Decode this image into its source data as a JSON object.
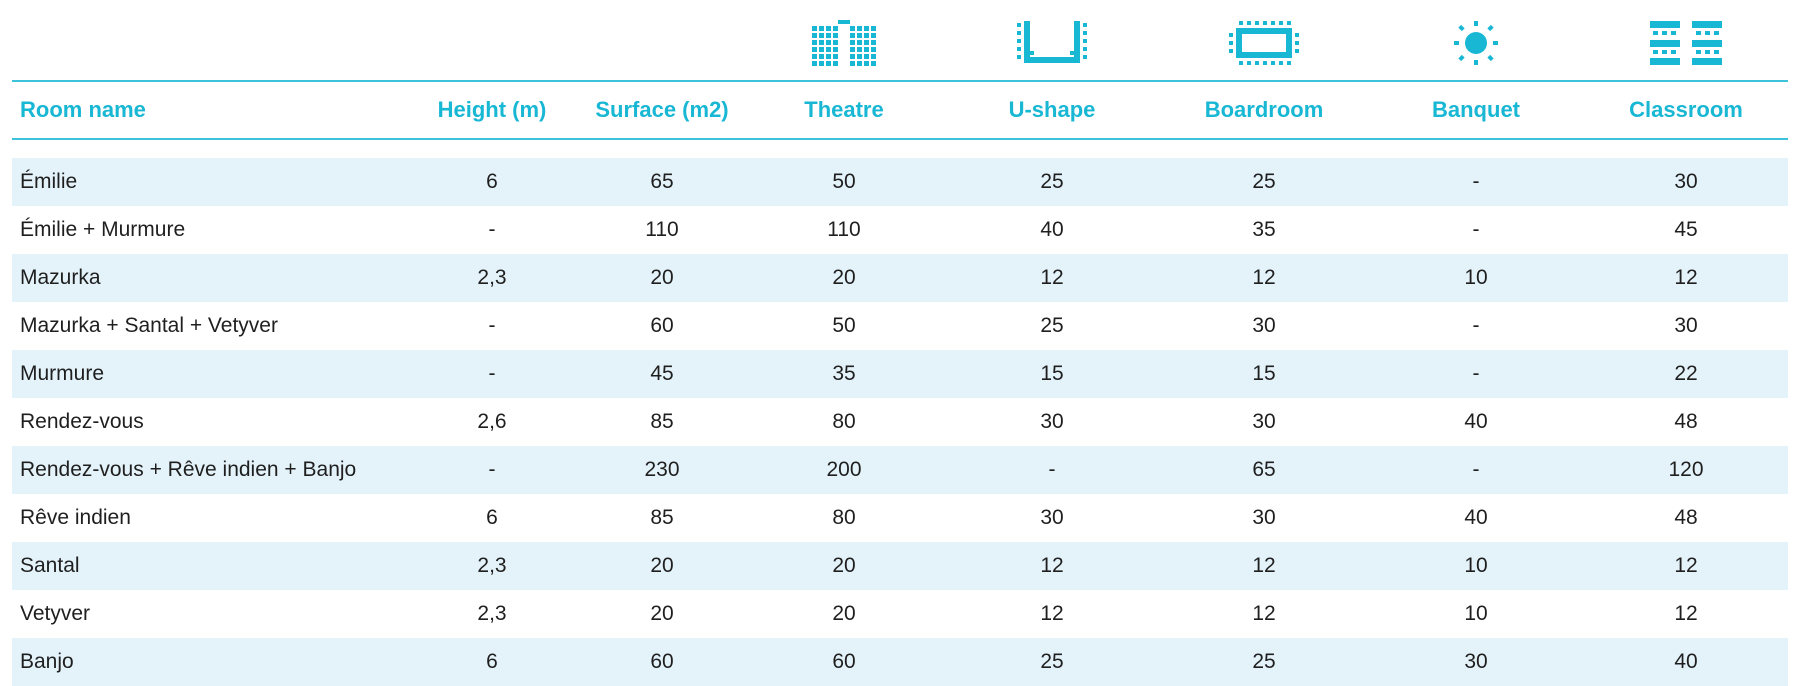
{
  "colors": {
    "accent": "#18b7d4",
    "rule": "#3cc3d9",
    "row_alt_bg": "#e4f3fa",
    "text": "#1f1f1f"
  },
  "icons": [
    "theatre-layout-icon",
    "u-shape-layout-icon",
    "boardroom-layout-icon",
    "banquet-layout-icon",
    "classroom-layout-icon"
  ],
  "table": {
    "headers": [
      "Room name",
      "Height (m)",
      "Surface (m2)",
      "Theatre",
      "U-shape",
      "Boardroom",
      "Banquet",
      "Classroom"
    ],
    "rows": [
      [
        "Émilie",
        "6",
        "65",
        "50",
        "25",
        "25",
        "-",
        "30"
      ],
      [
        "Émilie + Murmure",
        "-",
        "110",
        "110",
        "40",
        "35",
        "-",
        "45"
      ],
      [
        "Mazurka",
        "2,3",
        "20",
        "20",
        "12",
        "12",
        "10",
        "12"
      ],
      [
        "Mazurka + Santal + Vetyver",
        "-",
        "60",
        "50",
        "25",
        "30",
        "-",
        "30"
      ],
      [
        "Murmure",
        "-",
        "45",
        "35",
        "15",
        "15",
        "-",
        "22"
      ],
      [
        "Rendez-vous",
        "2,6",
        "85",
        "80",
        "30",
        "30",
        "40",
        "48"
      ],
      [
        "Rendez-vous + Rêve indien + Banjo",
        "-",
        "230",
        "200",
        "-",
        "65",
        "-",
        "120"
      ],
      [
        "Rêve indien",
        "6",
        "85",
        "80",
        "30",
        "30",
        "40",
        "48"
      ],
      [
        "Santal",
        "2,3",
        "20",
        "20",
        "12",
        "12",
        "10",
        "12"
      ],
      [
        "Vetyver",
        "2,3",
        "20",
        "20",
        "12",
        "12",
        "10",
        "12"
      ],
      [
        "Banjo",
        "6",
        "60",
        "60",
        "25",
        "25",
        "30",
        "40"
      ]
    ]
  }
}
